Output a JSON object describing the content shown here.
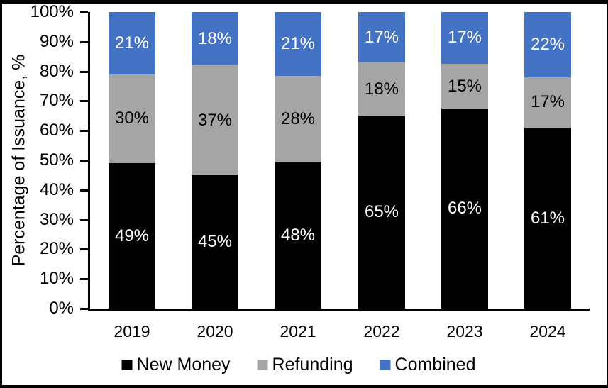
{
  "figure": {
    "background_color": "#FFFFFF",
    "border_color": "#000000"
  },
  "y_axis": {
    "title": "Percentage of Issuance, %",
    "tick_labels": [
      "0%",
      "10%",
      "20%",
      "30%",
      "40%",
      "50%",
      "60%",
      "70%",
      "80%",
      "90%",
      "100%"
    ],
    "tick_values": [
      0,
      10,
      20,
      30,
      40,
      50,
      60,
      70,
      80,
      90,
      100
    ]
  },
  "chart_data": {
    "type": "bar",
    "stacked": true,
    "title": "",
    "xlabel": "",
    "ylabel": "Percentage of Issuance, %",
    "ylim": [
      0,
      100
    ],
    "grid": false,
    "legend_position": "bottom",
    "value_suffix": "%",
    "categories": [
      "2019",
      "2020",
      "2021",
      "2022",
      "2023",
      "2024"
    ],
    "series": [
      {
        "name": "New Money",
        "color": "#000000",
        "label_color": "#FFFFFF",
        "values": [
          49,
          45,
          48,
          65,
          66,
          61
        ]
      },
      {
        "name": "Refunding",
        "color": "#A5A5A5",
        "label_color": "#000000",
        "values": [
          30,
          37,
          28,
          18,
          15,
          17
        ]
      },
      {
        "name": "Combined",
        "color": "#4472C4",
        "label_color": "#FFFFFF",
        "values": [
          21,
          18,
          21,
          17,
          17,
          22
        ]
      }
    ]
  },
  "legend": {
    "items": [
      {
        "label": "New Money",
        "color": "#000000"
      },
      {
        "label": "Refunding",
        "color": "#A5A5A5"
      },
      {
        "label": "Combined",
        "color": "#4472C4"
      }
    ]
  }
}
